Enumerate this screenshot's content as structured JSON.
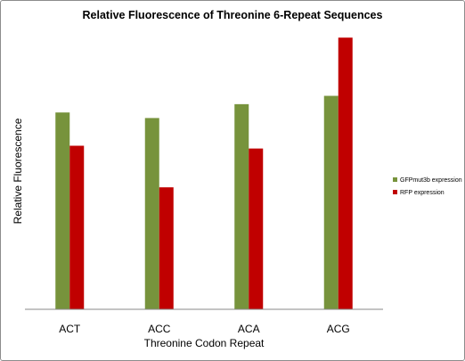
{
  "chart_data": {
    "type": "bar",
    "title": "Relative Fluorescence of Threonine 6-Repeat Sequences",
    "xlabel": "Threonine Codon Repeat",
    "ylabel": "Relative Fluorescence",
    "categories": [
      "ACT",
      "ACC",
      "ACA",
      "ACG"
    ],
    "series": [
      {
        "name": "GFPmut3b expression",
        "color": "#77933c",
        "values": [
          0.71,
          0.69,
          0.74,
          0.77
        ]
      },
      {
        "name": "RFP expression",
        "color": "#c00000",
        "values": [
          0.59,
          0.44,
          0.58,
          0.98
        ]
      }
    ],
    "ylim": [
      0,
      1
    ],
    "grid": false,
    "y_ticks_shown": false,
    "legend_position": "right"
  }
}
